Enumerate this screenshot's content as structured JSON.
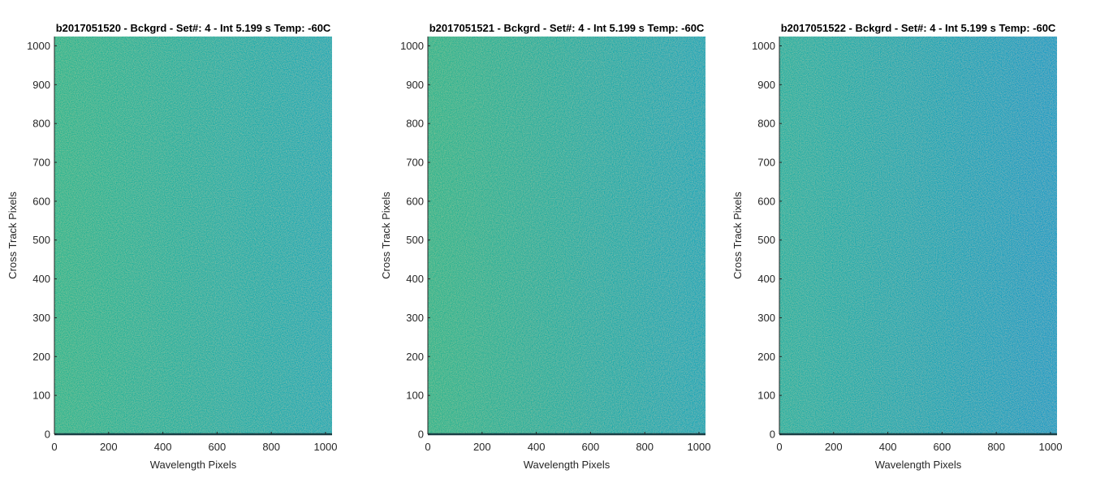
{
  "colors": {
    "left_edge": "#27b497",
    "right_edge": "#109fc2",
    "axis": "#262626",
    "baseline": "#1a3f45"
  },
  "chart_data": [
    {
      "type": "heatmap",
      "title": "b2017051520 - Bckgrd - Set#: 4 - Int 5.199 s Temp: -60C",
      "xlabel": "Wavelength Pixels",
      "ylabel": "Cross Track Pixels",
      "xlim": [
        0,
        1024
      ],
      "ylim": [
        0,
        1024
      ],
      "xticks": [
        0,
        200,
        400,
        600,
        800,
        1000
      ],
      "yticks": [
        0,
        100,
        200,
        300,
        400,
        500,
        600,
        700,
        800,
        900,
        1000
      ],
      "gradient": {
        "left_color": "#2bb591",
        "right_color": "#1aa9b6"
      }
    },
    {
      "type": "heatmap",
      "title": "b2017051521 - Bckgrd - Set#: 4 - Int 5.199 s Temp: -60C",
      "xlabel": "Wavelength Pixels",
      "ylabel": "Cross Track Pixels",
      "xlim": [
        0,
        1024
      ],
      "ylim": [
        0,
        1024
      ],
      "xticks": [
        0,
        200,
        400,
        600,
        800,
        1000
      ],
      "yticks": [
        0,
        100,
        200,
        300,
        400,
        500,
        600,
        700,
        800,
        900,
        1000
      ],
      "gradient": {
        "left_color": "#2db48f",
        "right_color": "#18a6b9"
      }
    },
    {
      "type": "heatmap",
      "title": "b2017051522 - Bckgrd - Set#: 4 - Int 5.199 s Temp: -60C",
      "xlabel": "Wavelength Pixels",
      "ylabel": "Cross Track Pixels",
      "xlim": [
        0,
        1024
      ],
      "ylim": [
        0,
        1024
      ],
      "xticks": [
        0,
        200,
        400,
        600,
        800,
        1000
      ],
      "yticks": [
        0,
        100,
        200,
        300,
        400,
        500,
        600,
        700,
        800,
        900,
        1000
      ],
      "gradient": {
        "left_color": "#22b0a4",
        "right_color": "#129cc6"
      }
    }
  ]
}
